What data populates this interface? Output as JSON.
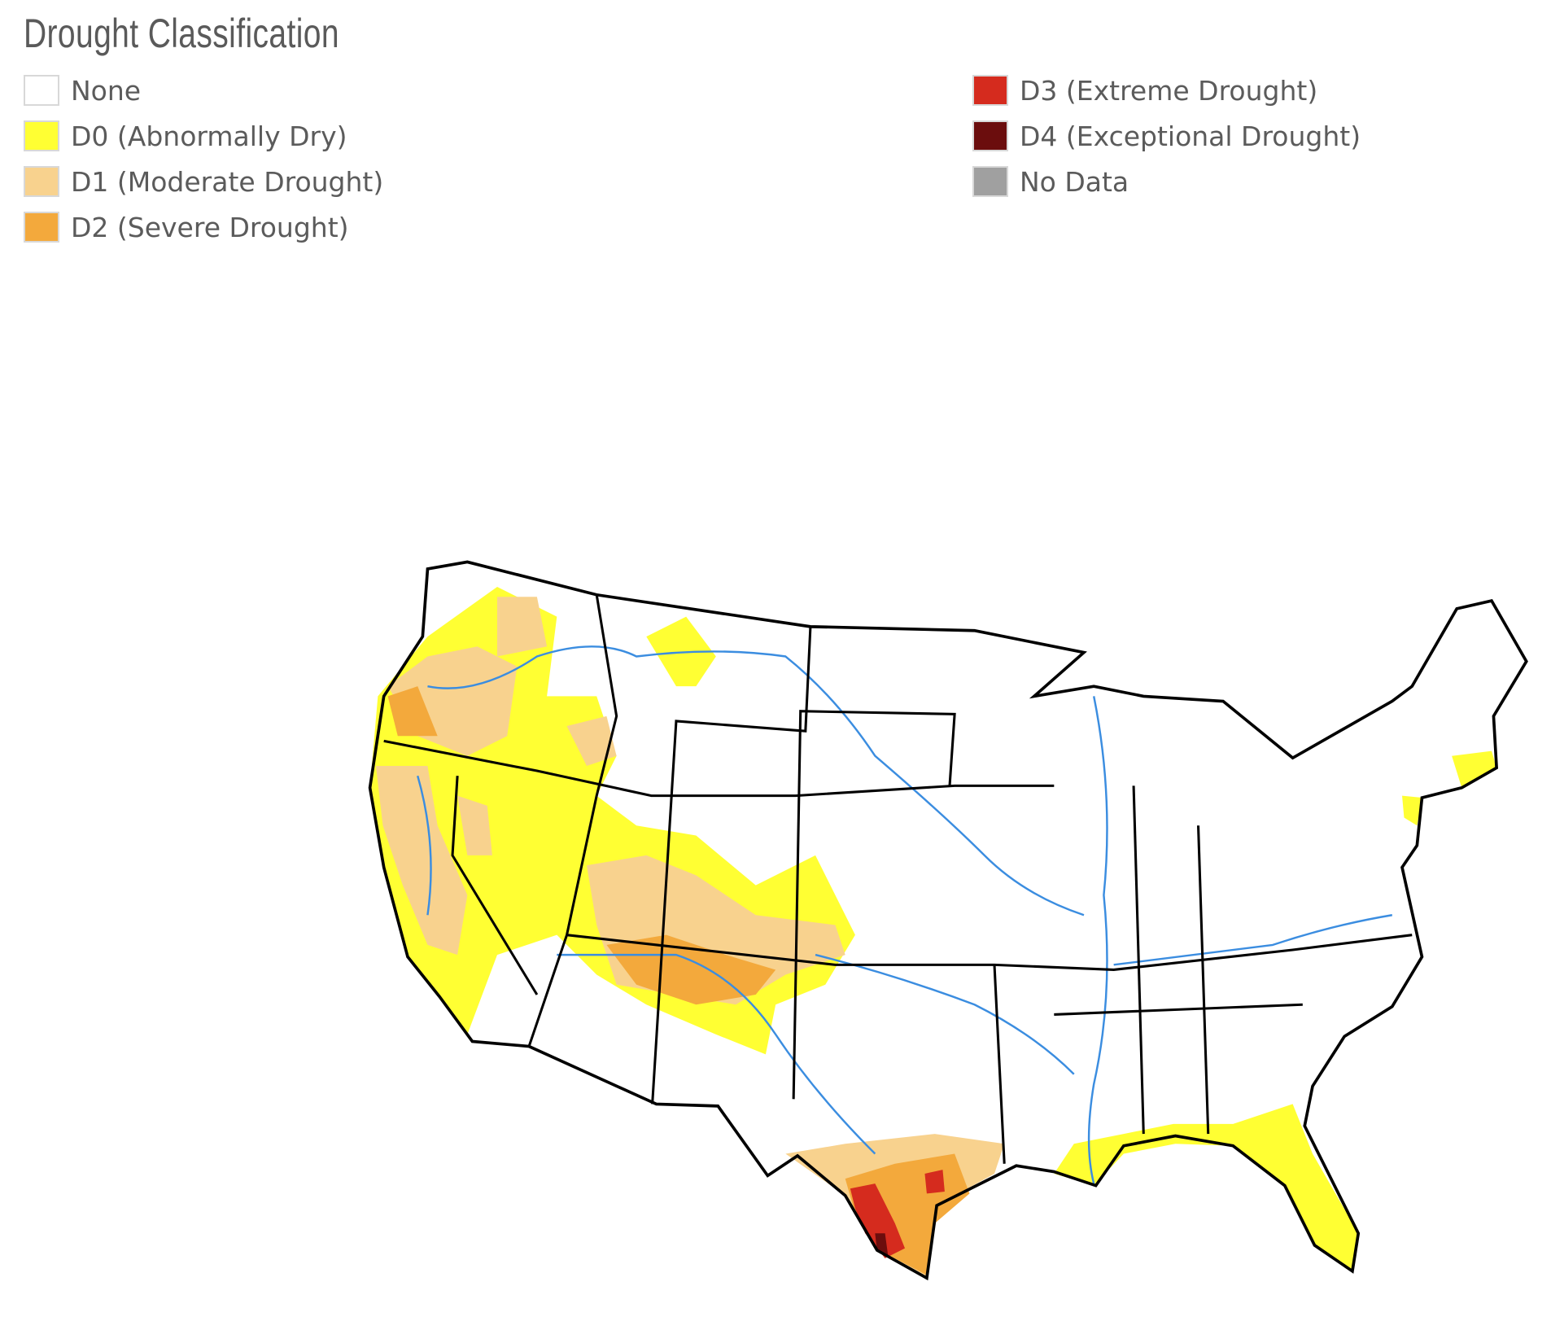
{
  "title": "Drought Classification",
  "legend": {
    "items": [
      {
        "label": "None",
        "color": "#ffffff"
      },
      {
        "label": "D0 (Abnormally Dry)",
        "color": "#ffff33"
      },
      {
        "label": "D1 (Moderate Drought)",
        "color": "#f8d28e"
      },
      {
        "label": "D2 (Severe Drought)",
        "color": "#f3a93c"
      },
      {
        "label": "D3 (Extreme Drought)",
        "color": "#d52b1e"
      },
      {
        "label": "D4 (Exceptional Drought)",
        "color": "#6b0d0d"
      },
      {
        "label": "No Data",
        "color": "#a0a0a0"
      }
    ]
  }
}
